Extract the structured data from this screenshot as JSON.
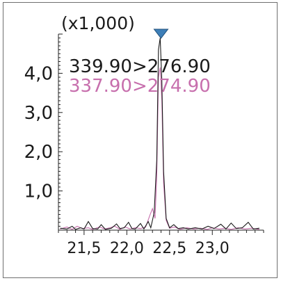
{
  "chart_data": {
    "type": "line",
    "scale_note": "(x1,000)",
    "x_tick_labels": [
      "21,5",
      "22,0",
      "22,5",
      "23,0"
    ],
    "x_ticks": [
      21.5,
      22.0,
      22.5,
      23.0
    ],
    "y_tick_labels": [
      "1,0",
      "2,0",
      "3,0",
      "4,0"
    ],
    "y_ticks": [
      1.0,
      2.0,
      3.0,
      4.0
    ],
    "xlim": [
      21.2,
      23.6
    ],
    "ylim": [
      0.0,
      5.0
    ],
    "grid": false,
    "legend_position": "top-left",
    "marker": {
      "x": 22.4,
      "color": "#3d7fb8",
      "shape": "triangle-down"
    },
    "series": [
      {
        "name": "339.90>276.90",
        "color": "#1a1a1a",
        "points": [
          [
            21.22,
            0.05
          ],
          [
            21.3,
            0.03
          ],
          [
            21.36,
            0.1
          ],
          [
            21.4,
            0.02
          ],
          [
            21.46,
            0.06
          ],
          [
            21.5,
            0.03
          ],
          [
            21.55,
            0.22
          ],
          [
            21.6,
            0.04
          ],
          [
            21.66,
            0.03
          ],
          [
            21.7,
            0.14
          ],
          [
            21.75,
            0.02
          ],
          [
            21.82,
            0.05
          ],
          [
            21.88,
            0.16
          ],
          [
            21.92,
            0.04
          ],
          [
            21.97,
            0.06
          ],
          [
            22.02,
            0.2
          ],
          [
            22.06,
            0.04
          ],
          [
            22.1,
            0.03
          ],
          [
            22.16,
            0.17
          ],
          [
            22.2,
            0.03
          ],
          [
            22.25,
            0.22
          ],
          [
            22.28,
            0.06
          ],
          [
            22.32,
            0.45
          ],
          [
            22.35,
            1.8
          ],
          [
            22.37,
            4.6
          ],
          [
            22.39,
            4.9
          ],
          [
            22.41,
            3.8
          ],
          [
            22.43,
            1.5
          ],
          [
            22.46,
            0.3
          ],
          [
            22.5,
            0.06
          ],
          [
            22.55,
            0.14
          ],
          [
            22.6,
            0.04
          ],
          [
            22.66,
            0.06
          ],
          [
            22.72,
            0.03
          ],
          [
            22.8,
            0.06
          ],
          [
            22.88,
            0.03
          ],
          [
            22.95,
            0.1
          ],
          [
            23.02,
            0.04
          ],
          [
            23.1,
            0.15
          ],
          [
            23.16,
            0.03
          ],
          [
            23.22,
            0.18
          ],
          [
            23.28,
            0.04
          ],
          [
            23.35,
            0.06
          ],
          [
            23.42,
            0.2
          ],
          [
            23.48,
            0.03
          ],
          [
            23.55,
            0.05
          ]
        ]
      },
      {
        "name": "337.90>274.90",
        "color": "#c76fad",
        "points": [
          [
            21.22,
            0.03
          ],
          [
            21.3,
            0.08
          ],
          [
            21.36,
            0.02
          ],
          [
            21.42,
            0.1
          ],
          [
            21.48,
            0.04
          ],
          [
            21.55,
            0.06
          ],
          [
            21.6,
            0.02
          ],
          [
            21.68,
            0.08
          ],
          [
            21.74,
            0.03
          ],
          [
            21.8,
            0.06
          ],
          [
            21.86,
            0.1
          ],
          [
            21.92,
            0.02
          ],
          [
            21.98,
            0.08
          ],
          [
            22.04,
            0.03
          ],
          [
            22.1,
            0.06
          ],
          [
            22.16,
            0.04
          ],
          [
            22.22,
            0.08
          ],
          [
            22.27,
            0.38
          ],
          [
            22.3,
            0.55
          ],
          [
            22.33,
            0.3
          ],
          [
            22.35,
            1.4
          ],
          [
            22.37,
            3.9
          ],
          [
            22.39,
            4.15
          ],
          [
            22.41,
            3.3
          ],
          [
            22.43,
            1.2
          ],
          [
            22.46,
            0.25
          ],
          [
            22.5,
            0.05
          ],
          [
            22.56,
            0.08
          ],
          [
            22.62,
            0.02
          ],
          [
            22.7,
            0.06
          ],
          [
            22.78,
            0.03
          ],
          [
            22.86,
            0.05
          ],
          [
            22.94,
            0.02
          ],
          [
            23.0,
            0.06
          ],
          [
            23.08,
            0.03
          ],
          [
            23.15,
            0.05
          ],
          [
            23.22,
            0.02
          ],
          [
            23.3,
            0.06
          ],
          [
            23.38,
            0.03
          ],
          [
            23.46,
            0.05
          ],
          [
            23.55,
            0.02
          ]
        ]
      }
    ]
  }
}
